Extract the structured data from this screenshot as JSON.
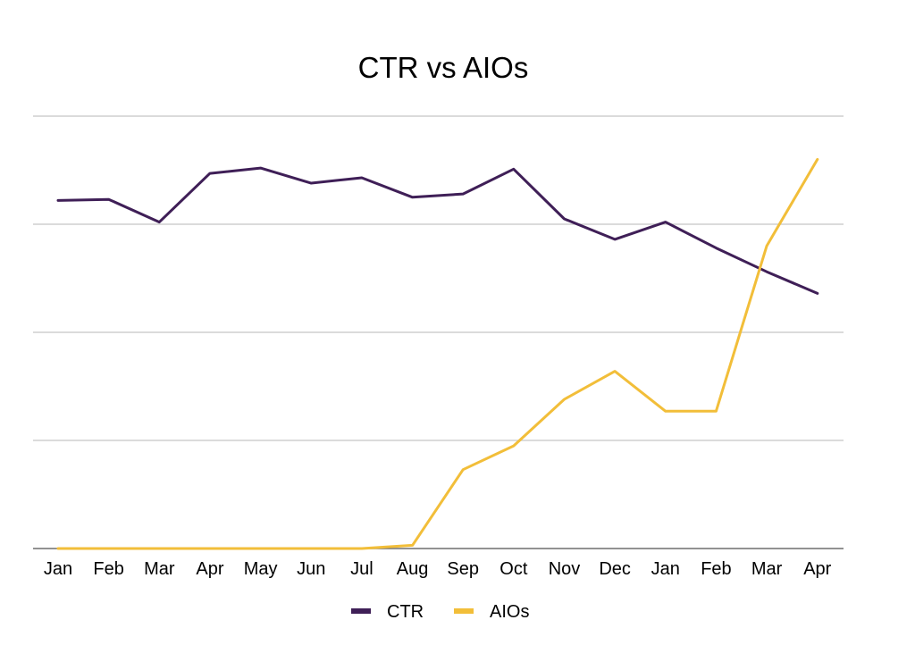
{
  "chart_data": {
    "type": "line",
    "title": "CTR vs AIOs",
    "xlabel": "",
    "ylabel": "",
    "categories": [
      "Jan",
      "Feb",
      "Mar",
      "Apr",
      "May",
      "Jun",
      "Jul",
      "Aug",
      "Sep",
      "Oct",
      "Nov",
      "Dec",
      "Jan",
      "Feb",
      "Mar",
      "Apr"
    ],
    "series": [
      {
        "name": "CTR",
        "color": "#3f1f57",
        "values": [
          3.22,
          3.23,
          3.02,
          3.47,
          3.52,
          3.38,
          3.43,
          3.25,
          3.28,
          3.51,
          3.05,
          2.86,
          3.02,
          2.78,
          2.56,
          2.36
        ]
      },
      {
        "name": "AIOs",
        "color": "#f2be39",
        "values": [
          0,
          0,
          0,
          0,
          0,
          0,
          0,
          0.03,
          0.73,
          0.95,
          1.38,
          1.64,
          1.27,
          1.27,
          2.8,
          3.6
        ]
      }
    ],
    "ylim": [
      0,
      4.0
    ],
    "y_ticks_labeled": false,
    "grid": true,
    "legend_position": "bottom"
  }
}
